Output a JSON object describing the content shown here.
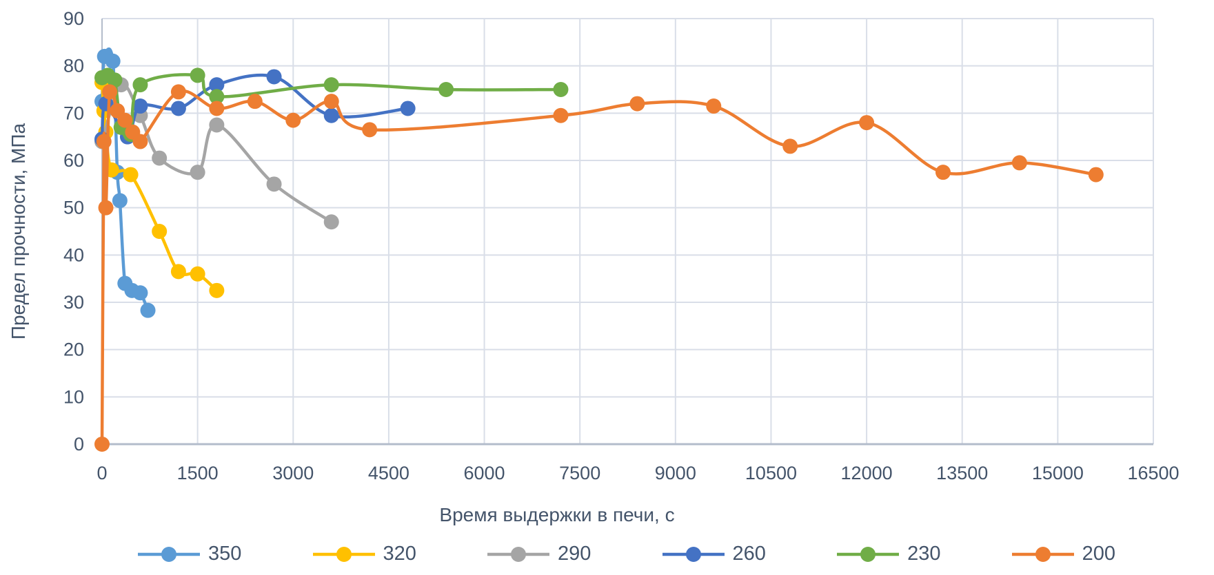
{
  "chart_data": {
    "type": "line",
    "title": "",
    "xlabel": "Время выдержки в печи, с",
    "ylabel": "Предел прочности, МПа",
    "xlim": [
      0,
      16500
    ],
    "ylim": [
      0,
      90
    ],
    "x_ticks": [
      0,
      1500,
      3000,
      4500,
      6000,
      7500,
      9000,
      10500,
      12000,
      13500,
      15000,
      16500
    ],
    "y_ticks": [
      0,
      10,
      20,
      30,
      40,
      50,
      60,
      70,
      80,
      90
    ],
    "grid": true,
    "smooth_lines": true,
    "legend_position": "bottom",
    "legend_entries": [
      "350",
      "320",
      "290",
      "260",
      "230",
      "200"
    ],
    "series": [
      {
        "name": "350",
        "color": "#5B9BD5",
        "points": [
          [
            0,
            72.5
          ],
          [
            40,
            82
          ],
          [
            170,
            81
          ],
          [
            240,
            57.5
          ],
          [
            280,
            51.5
          ],
          [
            360,
            34
          ],
          [
            470,
            32.5
          ],
          [
            600,
            32
          ],
          [
            720,
            28.3
          ]
        ]
      },
      {
        "name": "320",
        "color": "#FFC000",
        "points": [
          [
            0,
            76.5
          ],
          [
            30,
            70.5
          ],
          [
            60,
            66
          ],
          [
            150,
            58
          ],
          [
            450,
            57
          ],
          [
            900,
            45
          ],
          [
            1200,
            36.5
          ],
          [
            1500,
            36
          ],
          [
            1800,
            32.5
          ]
        ]
      },
      {
        "name": "290",
        "color": "#A5A5A5",
        "points": [
          [
            0,
            64
          ],
          [
            300,
            76
          ],
          [
            600,
            69.5
          ],
          [
            900,
            60.5
          ],
          [
            1500,
            57.5
          ],
          [
            1800,
            67.5
          ],
          [
            2700,
            55
          ],
          [
            3600,
            47
          ]
        ]
      },
      {
        "name": "260",
        "color": "#4472C4",
        "points": [
          [
            0,
            64.5
          ],
          [
            60,
            72
          ],
          [
            400,
            65
          ],
          [
            600,
            71.5
          ],
          [
            1200,
            71
          ],
          [
            1800,
            76
          ],
          [
            2700,
            77.7
          ],
          [
            3600,
            69.5
          ],
          [
            4800,
            71
          ]
        ]
      },
      {
        "name": "230",
        "color": "#70AD47",
        "points": [
          [
            0,
            77.5
          ],
          [
            90,
            78
          ],
          [
            200,
            77
          ],
          [
            300,
            67
          ],
          [
            450,
            65.5
          ],
          [
            600,
            76
          ],
          [
            1500,
            78
          ],
          [
            1800,
            73.5
          ],
          [
            3600,
            76
          ],
          [
            5400,
            75
          ],
          [
            7200,
            75
          ]
        ]
      },
      {
        "name": "200",
        "color": "#ED7D31",
        "points": [
          [
            0,
            0
          ],
          [
            30,
            64
          ],
          [
            60,
            50
          ],
          [
            120,
            74.5
          ],
          [
            240,
            70.5
          ],
          [
            360,
            68.5
          ],
          [
            480,
            66
          ],
          [
            600,
            64
          ],
          [
            1200,
            74.5
          ],
          [
            1800,
            71
          ],
          [
            2400,
            72.5
          ],
          [
            3000,
            68.5
          ],
          [
            3600,
            72.5
          ],
          [
            4200,
            66.5
          ],
          [
            7200,
            69.5
          ],
          [
            8400,
            72
          ],
          [
            9600,
            71.5
          ],
          [
            10800,
            63
          ],
          [
            12000,
            68
          ],
          [
            13200,
            57.5
          ],
          [
            14400,
            59.5
          ],
          [
            15600,
            57
          ]
        ]
      }
    ]
  },
  "colors": {
    "text": "#44546A",
    "gridline": "#D9DEE8",
    "axis_line": "#B3BCCB",
    "background": "#FFFFFF"
  }
}
